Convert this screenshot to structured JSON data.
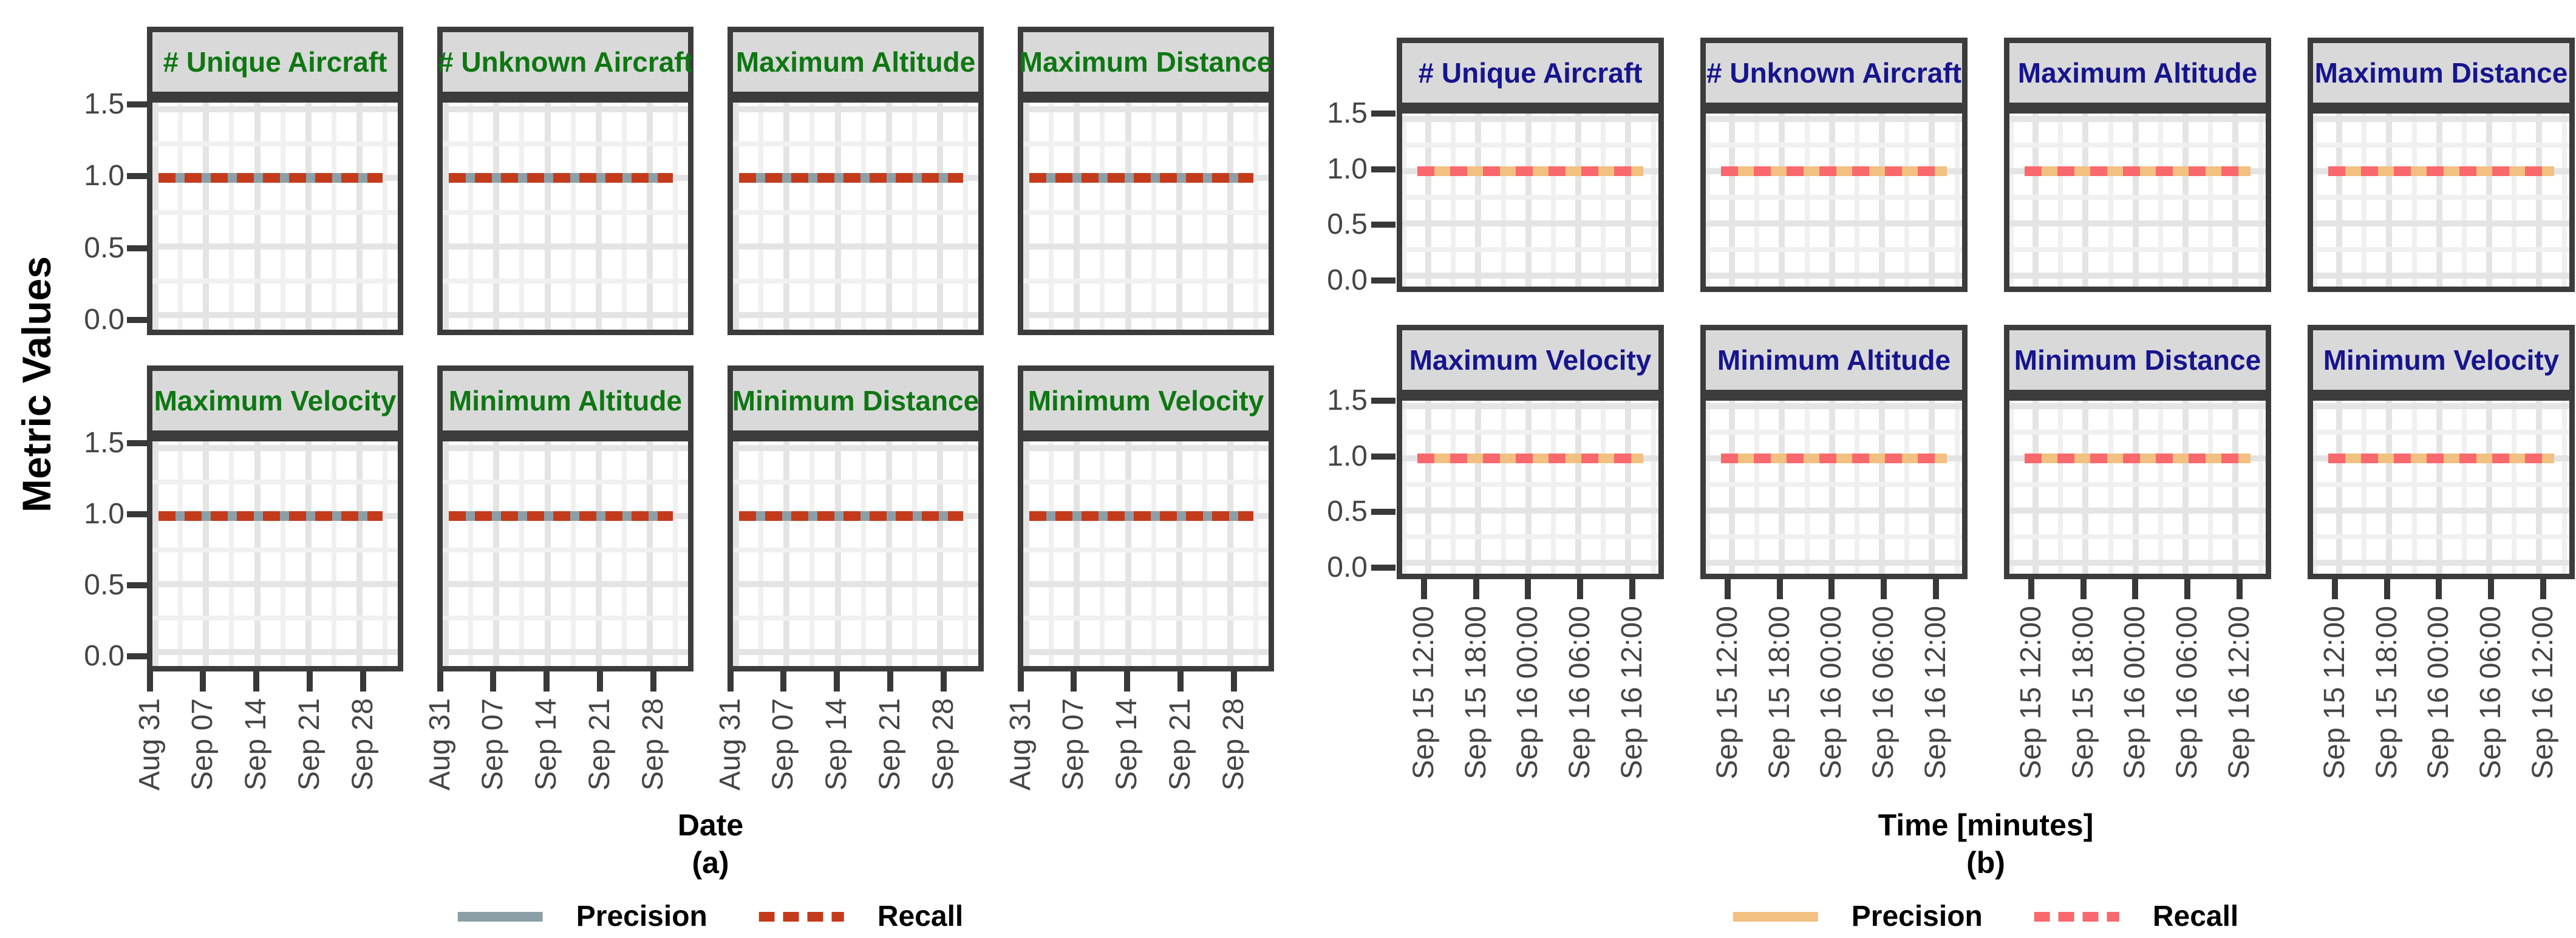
{
  "y_axis": {
    "title": "Metric Values",
    "ticks": [
      "1.5",
      "1.0",
      "0.5",
      "0.0"
    ]
  },
  "subplots": [
    {
      "id": "a",
      "caption": "(a)",
      "x_axis_title": "Date",
      "facet_title_color": "#0e7712",
      "facets": [
        "# Unique Aircraft",
        "# Unknown Aircraft",
        "Maximum Altitude",
        "Maximum Distance",
        "Maximum Velocity",
        "Minimum Altitude",
        "Minimum Distance",
        "Minimum Velocity"
      ],
      "x_ticks": [
        "Aug 31",
        "Sep 07",
        "Sep 14",
        "Sep 21",
        "Sep 28"
      ],
      "legend": {
        "precision": {
          "label": "Precision",
          "style": "solid",
          "color": "#8c9fa6"
        },
        "recall": {
          "label": "Recall",
          "style": "dashed",
          "color": "#c43b1b"
        }
      }
    },
    {
      "id": "b",
      "caption": "(b)",
      "x_axis_title": "Time [minutes]",
      "facet_title_color": "#16158d",
      "facets": [
        "# Unique Aircraft",
        "# Unknown Aircraft",
        "Maximum Altitude",
        "Maximum Distance",
        "Maximum Velocity",
        "Minimum Altitude",
        "Minimum Distance",
        "Minimum Velocity"
      ],
      "x_ticks": [
        "Sep 15 12:00",
        "Sep 15 18:00",
        "Sep 16 00:00",
        "Sep 16 06:00",
        "Sep 16 12:00"
      ],
      "legend": {
        "precision": {
          "label": "Precision",
          "style": "solid",
          "color": "#f2c080"
        },
        "recall": {
          "label": "Recall",
          "style": "dashed",
          "color": "#f9686c"
        }
      }
    }
  ],
  "chart_data": [
    {
      "type": "line",
      "subplot": "(a)",
      "title": "",
      "facets": [
        "# Unique Aircraft",
        "# Unknown Aircraft",
        "Maximum Altitude",
        "Maximum Distance",
        "Maximum Velocity",
        "Minimum Altitude",
        "Minimum Distance",
        "Minimum Velocity"
      ],
      "facet_layout": "2 rows x 4 columns, shared axes",
      "xlabel": "Date",
      "ylabel": "Metric Values",
      "x_ticks": [
        "Aug 31",
        "Sep 07",
        "Sep 14",
        "Sep 21",
        "Sep 28"
      ],
      "y_ticks": [
        0.0,
        0.5,
        1.0,
        1.5
      ],
      "ylim": [
        -0.1,
        1.55
      ],
      "grid": "major and minor, light gray on white",
      "legend_position": "bottom center",
      "series": [
        {
          "name": "Precision",
          "style": "solid",
          "color": "#8c9fa6",
          "value": 1.0,
          "note": "constant at 1.0 across the full date range in every facet"
        },
        {
          "name": "Recall",
          "style": "dashed",
          "color": "#c43b1b",
          "value": 1.0,
          "note": "constant at 1.0 across the full date range in every facet"
        }
      ]
    },
    {
      "type": "line",
      "subplot": "(b)",
      "title": "",
      "facets": [
        "# Unique Aircraft",
        "# Unknown Aircraft",
        "Maximum Altitude",
        "Maximum Distance",
        "Maximum Velocity",
        "Minimum Altitude",
        "Minimum Distance",
        "Minimum Velocity"
      ],
      "facet_layout": "2 rows x 4 columns, shared axes",
      "xlabel": "Time [minutes]",
      "ylabel": "Metric Values",
      "x_ticks": [
        "Sep 15 12:00",
        "Sep 15 18:00",
        "Sep 16 00:00",
        "Sep 16 06:00",
        "Sep 16 12:00"
      ],
      "y_ticks": [
        0.0,
        0.5,
        1.0,
        1.5
      ],
      "ylim": [
        -0.1,
        1.55
      ],
      "grid": "major and minor, light gray on white",
      "legend_position": "bottom center",
      "series": [
        {
          "name": "Precision",
          "style": "solid",
          "color": "#f2c080",
          "value": 1.0,
          "note": "constant at 1.0 across the full time range in every facet"
        },
        {
          "name": "Recall",
          "style": "dashed",
          "color": "#f9686c",
          "value": 1.0,
          "note": "constant at 1.0 across the full time range in every facet"
        }
      ]
    }
  ]
}
